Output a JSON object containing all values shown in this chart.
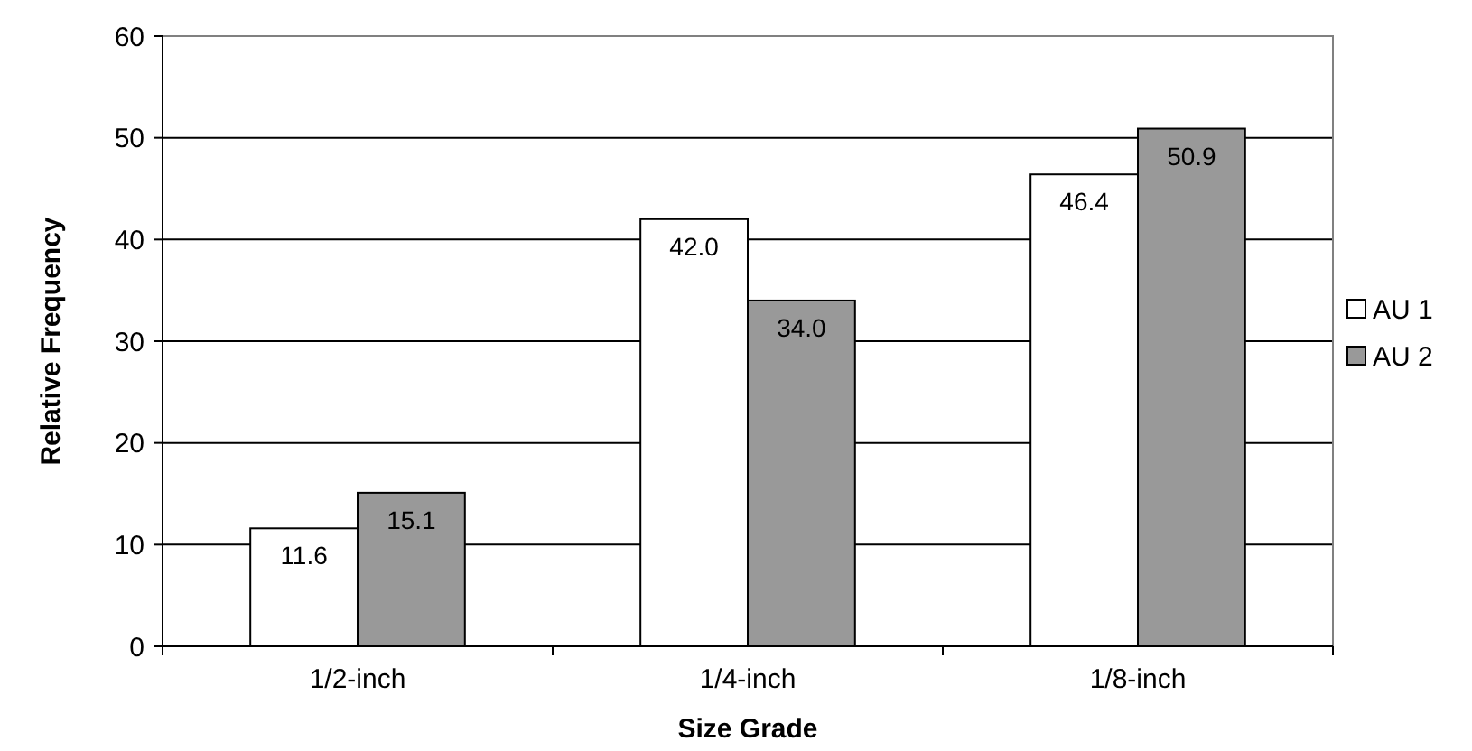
{
  "chart_data": {
    "type": "bar",
    "xlabel": "Size Grade",
    "ylabel": "Relative Frequency",
    "categories": [
      "1/2-inch",
      "1/4-inch",
      "1/8-inch"
    ],
    "series": [
      {
        "name": "AU 1",
        "color": "#ffffff",
        "values": [
          11.6,
          42.0,
          46.4
        ],
        "value_labels": [
          "11.6",
          "42.0",
          "46.4"
        ]
      },
      {
        "name": "AU 2",
        "color": "#999999",
        "values": [
          15.1,
          34.0,
          50.9
        ],
        "value_labels": [
          "15.1",
          "34.0",
          "50.9"
        ]
      }
    ],
    "ylim": [
      0,
      60
    ],
    "yticks": [
      0,
      10,
      20,
      30,
      40,
      50,
      60
    ],
    "grid": "y",
    "legend": "right"
  }
}
